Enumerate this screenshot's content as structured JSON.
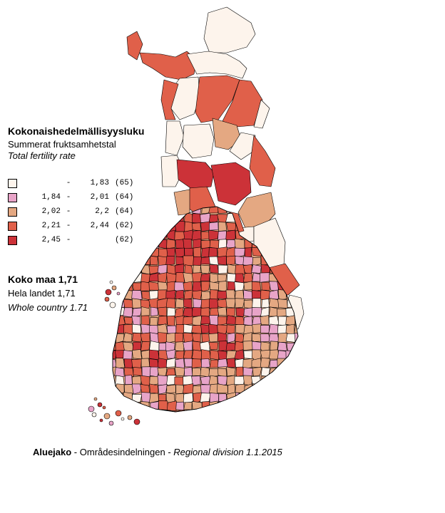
{
  "title": "Kokonaishedelmällisyysluku",
  "subtitle_sv": "Summerat fruktsamhetstal",
  "subtitle_en": "Total fertility rate",
  "legend": [
    {
      "lower": "",
      "dash": "-",
      "upper": "1,83",
      "count": "(65)",
      "color": "#fdf4ec"
    },
    {
      "lower": "1,84",
      "dash": "-",
      "upper": "2,01",
      "count": "(64)",
      "color": "#e8a4c8"
    },
    {
      "lower": "2,02",
      "dash": "-",
      "upper": "2,2",
      "count": "(64)",
      "color": "#e4a882"
    },
    {
      "lower": "2,21",
      "dash": "-",
      "upper": "2,44",
      "count": "(62)",
      "color": "#e0604a"
    },
    {
      "lower": "2,45",
      "dash": "-",
      "upper": "",
      "count": "(62)",
      "color": "#cc3238"
    }
  ],
  "country_fi": "Koko maa 1,71",
  "country_sv": "Hela landet 1,71",
  "country_en": "Whole country 1.71",
  "footer": {
    "fi": "Aluejako",
    "sep1": " - ",
    "sv": "Områdesindelningen",
    "sep2": " - ",
    "en": "Regional division 1.1.2015"
  }
}
